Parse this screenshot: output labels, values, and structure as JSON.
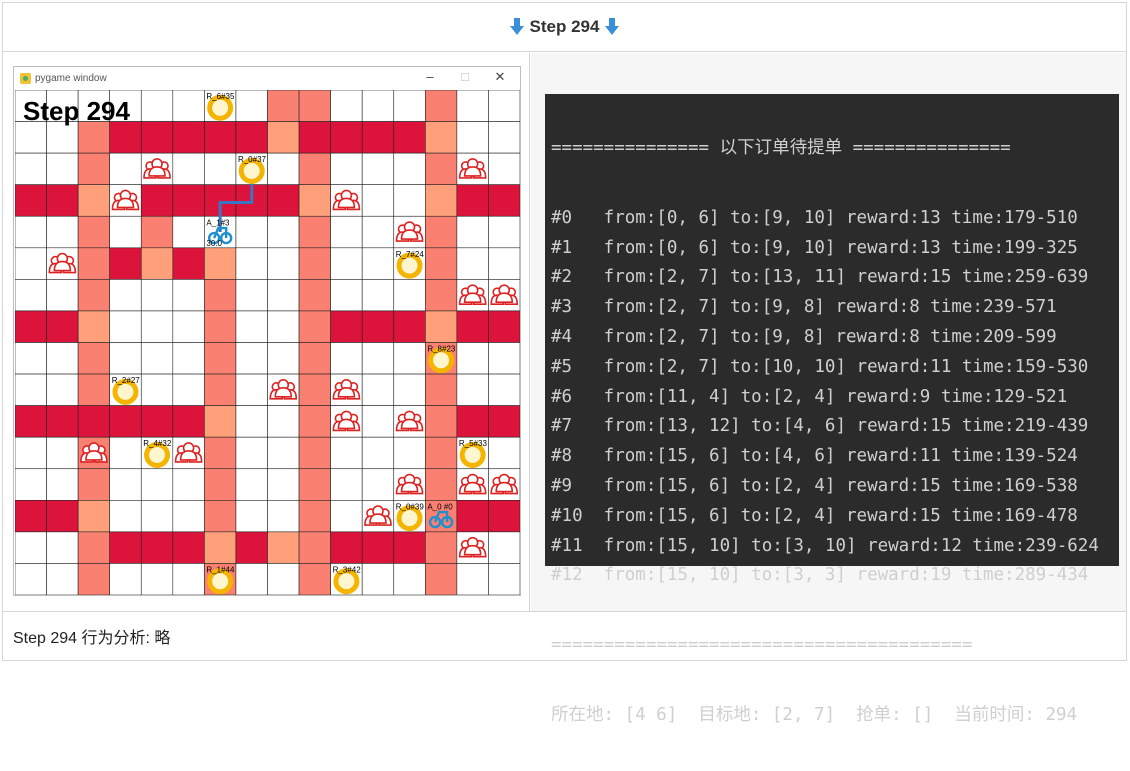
{
  "header": {
    "title": "Step 294"
  },
  "footer": {
    "text": "Step 294 行为分析:  略"
  },
  "pygame": {
    "window_title": "pygame window",
    "step_text": "Step 294",
    "controls": {
      "minimize": "–",
      "maximize": "□",
      "close": "✕"
    },
    "grid": {
      "cols": 16,
      "rows": 16
    },
    "colors": {
      "road_main": "#dc143c",
      "road_light": "#fa8072",
      "road_pale": "#ffa07a",
      "empty": "#ffffff",
      "grid_line": "#222222",
      "path": "#3a74c4"
    },
    "restaurants": [
      {
        "label": "R_6#35",
        "col": 6,
        "row": 0
      },
      {
        "label": "R_0#37",
        "col": 7,
        "row": 2
      },
      {
        "label": "R_7#24",
        "col": 12,
        "row": 5
      },
      {
        "label": "R_8#23",
        "col": 13,
        "row": 8
      },
      {
        "label": "R_2#27",
        "col": 3,
        "row": 9
      },
      {
        "label": "R_4#32",
        "col": 4,
        "row": 11
      },
      {
        "label": "R_5#33",
        "col": 14,
        "row": 11
      },
      {
        "label": "R_0#39",
        "col": 12,
        "row": 13
      },
      {
        "label": "R_1#44",
        "col": 6,
        "row": 15
      },
      {
        "label": "R_3#42",
        "col": 10,
        "row": 15
      }
    ],
    "agents": [
      {
        "label": "A_1#3",
        "col": 6,
        "row": 4,
        "extra": "30.0"
      },
      {
        "label": "A_0 #0",
        "col": 13,
        "row": 13
      }
    ],
    "customers": [
      [
        4,
        2
      ],
      [
        14,
        2
      ],
      [
        3,
        3
      ],
      [
        10,
        3
      ],
      [
        12,
        4
      ],
      [
        1,
        5
      ],
      [
        14,
        6
      ],
      [
        15,
        6
      ],
      [
        8,
        9
      ],
      [
        10,
        9
      ],
      [
        10,
        10
      ],
      [
        12,
        10
      ],
      [
        2,
        11
      ],
      [
        5,
        11
      ],
      [
        12,
        12
      ],
      [
        14,
        12
      ],
      [
        15,
        12
      ],
      [
        11,
        13
      ],
      [
        14,
        14
      ]
    ]
  },
  "terminal": {
    "header_line": "=============== 以下订单待提单 ===============",
    "orders": [
      "#0   from:[0, 6] to:[9, 10] reward:13 time:179-510",
      "#1   from:[0, 6] to:[9, 10] reward:13 time:199-325",
      "#2   from:[2, 7] to:[13, 11] reward:15 time:259-639",
      "#3   from:[2, 7] to:[9, 8] reward:8 time:239-571",
      "#4   from:[2, 7] to:[9, 8] reward:8 time:209-599",
      "#5   from:[2, 7] to:[10, 10] reward:11 time:159-530",
      "#6   from:[11, 4] to:[2, 4] reward:9 time:129-521",
      "#7   from:[13, 12] to:[4, 6] reward:15 time:219-439",
      "#8   from:[15, 6] to:[4, 6] reward:11 time:139-524",
      "#9   from:[15, 6] to:[2, 4] reward:15 time:169-538",
      "#10  from:[15, 6] to:[2, 4] reward:15 time:169-478",
      "#11  from:[15, 10] to:[3, 10] reward:12 time:239-624",
      "#12  from:[15, 10] to:[3, 3] reward:19 time:289-434"
    ],
    "footer_rule": "========================================",
    "status_line": "所在地: [4 6]  目标地: [2, 7]  抢单: []  当前时间: 294"
  }
}
